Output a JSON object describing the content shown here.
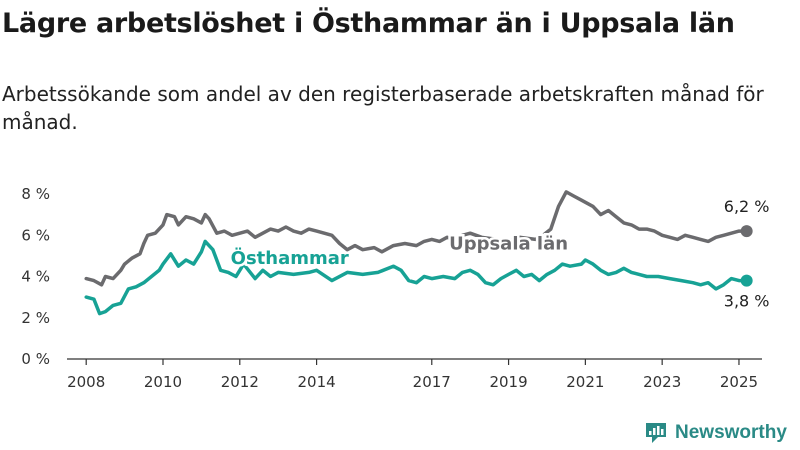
{
  "title": "Lägre arbetslöshet i Östhammar än i Uppsala län",
  "subtitle": "Arbetssökande som andel av den registerbaserade arbetskraften månad för månad.",
  "brand": "Newsworthy",
  "colors": {
    "osthammar": "#17a295",
    "uppsala": "#6b6b6e",
    "brand": "#2a8a86"
  },
  "chart_data": {
    "type": "line",
    "title": "Lägre arbetslöshet i Östhammar än i Uppsala län",
    "subtitle": "Arbetssökande som andel av den registerbaserade arbetskraften månad för månad.",
    "xlabel": "",
    "ylabel": "",
    "x_ticks": [
      "2008",
      "2010",
      "2012",
      "2014",
      "2017",
      "2019",
      "2021",
      "2023",
      "2025"
    ],
    "y_ticks": [
      "0 %",
      "2 %",
      "4 %",
      "6 %",
      "8 %"
    ],
    "xlim": [
      2007.5,
      2025.6
    ],
    "ylim": [
      0,
      8
    ],
    "grid": false,
    "series": [
      {
        "name": "Uppsala län",
        "end_label": "6,2 %",
        "points": [
          [
            2008.0,
            3.9
          ],
          [
            2008.2,
            3.8
          ],
          [
            2008.4,
            3.6
          ],
          [
            2008.5,
            4.0
          ],
          [
            2008.7,
            3.9
          ],
          [
            2008.9,
            4.3
          ],
          [
            2009.0,
            4.6
          ],
          [
            2009.2,
            4.9
          ],
          [
            2009.4,
            5.1
          ],
          [
            2009.5,
            5.6
          ],
          [
            2009.6,
            6.0
          ],
          [
            2009.8,
            6.1
          ],
          [
            2010.0,
            6.5
          ],
          [
            2010.1,
            7.0
          ],
          [
            2010.3,
            6.9
          ],
          [
            2010.4,
            6.5
          ],
          [
            2010.6,
            6.9
          ],
          [
            2010.8,
            6.8
          ],
          [
            2011.0,
            6.6
          ],
          [
            2011.1,
            7.0
          ],
          [
            2011.2,
            6.8
          ],
          [
            2011.4,
            6.1
          ],
          [
            2011.6,
            6.2
          ],
          [
            2011.8,
            6.0
          ],
          [
            2012.0,
            6.1
          ],
          [
            2012.2,
            6.2
          ],
          [
            2012.4,
            5.9
          ],
          [
            2012.6,
            6.1
          ],
          [
            2012.8,
            6.3
          ],
          [
            2013.0,
            6.2
          ],
          [
            2013.2,
            6.4
          ],
          [
            2013.4,
            6.2
          ],
          [
            2013.6,
            6.1
          ],
          [
            2013.8,
            6.3
          ],
          [
            2014.0,
            6.2
          ],
          [
            2014.2,
            6.1
          ],
          [
            2014.4,
            6.0
          ],
          [
            2014.6,
            5.6
          ],
          [
            2014.8,
            5.3
          ],
          [
            2015.0,
            5.5
          ],
          [
            2015.2,
            5.3
          ],
          [
            2015.5,
            5.4
          ],
          [
            2015.7,
            5.2
          ],
          [
            2016.0,
            5.5
          ],
          [
            2016.3,
            5.6
          ],
          [
            2016.6,
            5.5
          ],
          [
            2016.8,
            5.7
          ],
          [
            2017.0,
            5.8
          ],
          [
            2017.2,
            5.7
          ],
          [
            2017.4,
            5.9
          ],
          [
            2017.6,
            5.8
          ],
          [
            2017.8,
            6.0
          ],
          [
            2018.0,
            6.1
          ],
          [
            2018.3,
            5.9
          ],
          [
            2018.7,
            5.8
          ],
          [
            2019.0,
            5.7
          ],
          [
            2019.3,
            5.9
          ],
          [
            2019.7,
            5.8
          ],
          [
            2019.9,
            6.0
          ],
          [
            2020.1,
            6.3
          ],
          [
            2020.3,
            7.4
          ],
          [
            2020.5,
            8.1
          ],
          [
            2020.7,
            7.9
          ],
          [
            2020.9,
            7.7
          ],
          [
            2021.0,
            7.6
          ],
          [
            2021.2,
            7.4
          ],
          [
            2021.4,
            7.0
          ],
          [
            2021.6,
            7.2
          ],
          [
            2021.8,
            6.9
          ],
          [
            2022.0,
            6.6
          ],
          [
            2022.2,
            6.5
          ],
          [
            2022.4,
            6.3
          ],
          [
            2022.6,
            6.3
          ],
          [
            2022.8,
            6.2
          ],
          [
            2023.0,
            6.0
          ],
          [
            2023.2,
            5.9
          ],
          [
            2023.4,
            5.8
          ],
          [
            2023.6,
            6.0
          ],
          [
            2023.8,
            5.9
          ],
          [
            2024.0,
            5.8
          ],
          [
            2024.2,
            5.7
          ],
          [
            2024.4,
            5.9
          ],
          [
            2024.6,
            6.0
          ],
          [
            2024.8,
            6.1
          ],
          [
            2025.0,
            6.2
          ],
          [
            2025.2,
            6.2
          ]
        ]
      },
      {
        "name": "Östhammar",
        "end_label": "3,8 %",
        "points": [
          [
            2008.0,
            3.0
          ],
          [
            2008.2,
            2.9
          ],
          [
            2008.35,
            2.2
          ],
          [
            2008.5,
            2.3
          ],
          [
            2008.7,
            2.6
          ],
          [
            2008.9,
            2.7
          ],
          [
            2009.1,
            3.4
          ],
          [
            2009.3,
            3.5
          ],
          [
            2009.5,
            3.7
          ],
          [
            2009.7,
            4.0
          ],
          [
            2009.9,
            4.3
          ],
          [
            2010.0,
            4.6
          ],
          [
            2010.2,
            5.1
          ],
          [
            2010.4,
            4.5
          ],
          [
            2010.6,
            4.8
          ],
          [
            2010.8,
            4.6
          ],
          [
            2011.0,
            5.2
          ],
          [
            2011.1,
            5.7
          ],
          [
            2011.3,
            5.3
          ],
          [
            2011.5,
            4.3
          ],
          [
            2011.7,
            4.2
          ],
          [
            2011.9,
            4.0
          ],
          [
            2012.1,
            4.6
          ],
          [
            2012.4,
            3.9
          ],
          [
            2012.6,
            4.3
          ],
          [
            2012.8,
            4.0
          ],
          [
            2013.0,
            4.2
          ],
          [
            2013.4,
            4.1
          ],
          [
            2013.8,
            4.2
          ],
          [
            2014.0,
            4.3
          ],
          [
            2014.4,
            3.8
          ],
          [
            2014.8,
            4.2
          ],
          [
            2015.2,
            4.1
          ],
          [
            2015.6,
            4.2
          ],
          [
            2016.0,
            4.5
          ],
          [
            2016.2,
            4.3
          ],
          [
            2016.4,
            3.8
          ],
          [
            2016.6,
            3.7
          ],
          [
            2016.8,
            4.0
          ],
          [
            2017.0,
            3.9
          ],
          [
            2017.3,
            4.0
          ],
          [
            2017.6,
            3.9
          ],
          [
            2017.8,
            4.2
          ],
          [
            2018.0,
            4.3
          ],
          [
            2018.2,
            4.1
          ],
          [
            2018.4,
            3.7
          ],
          [
            2018.6,
            3.6
          ],
          [
            2018.8,
            3.9
          ],
          [
            2019.0,
            4.1
          ],
          [
            2019.2,
            4.3
          ],
          [
            2019.4,
            4.0
          ],
          [
            2019.6,
            4.1
          ],
          [
            2019.8,
            3.8
          ],
          [
            2020.0,
            4.1
          ],
          [
            2020.2,
            4.3
          ],
          [
            2020.4,
            4.6
          ],
          [
            2020.6,
            4.5
          ],
          [
            2020.9,
            4.6
          ],
          [
            2021.0,
            4.8
          ],
          [
            2021.2,
            4.6
          ],
          [
            2021.4,
            4.3
          ],
          [
            2021.6,
            4.1
          ],
          [
            2021.8,
            4.2
          ],
          [
            2022.0,
            4.4
          ],
          [
            2022.2,
            4.2
          ],
          [
            2022.4,
            4.1
          ],
          [
            2022.6,
            4.0
          ],
          [
            2022.9,
            4.0
          ],
          [
            2023.2,
            3.9
          ],
          [
            2023.5,
            3.8
          ],
          [
            2023.8,
            3.7
          ],
          [
            2024.0,
            3.6
          ],
          [
            2024.2,
            3.7
          ],
          [
            2024.4,
            3.4
          ],
          [
            2024.6,
            3.6
          ],
          [
            2024.8,
            3.9
          ],
          [
            2025.0,
            3.8
          ],
          [
            2025.2,
            3.8
          ]
        ]
      }
    ]
  }
}
